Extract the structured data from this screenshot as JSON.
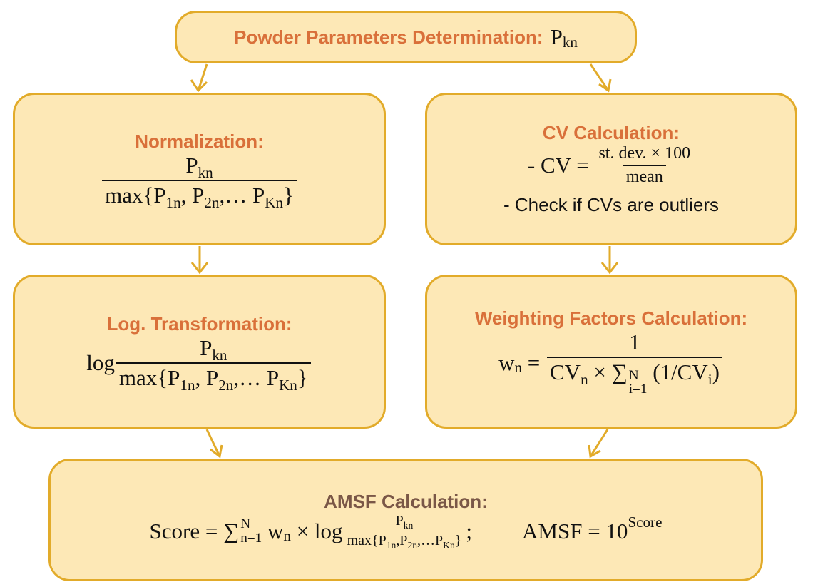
{
  "nodes": [
    {
      "title": "Powder Parameters Determination:",
      "formula": [
        {
          "t": "P"
        },
        {
          "sub": "kn"
        }
      ]
    },
    {
      "title": "Normalization:",
      "formula": [
        {
          "num": [
            {
              "t": "P"
            },
            {
              "sub": "kn"
            }
          ],
          "den": [
            {
              "t": "max{P"
            },
            {
              "sub": "1n"
            },
            {
              "t": ", P"
            },
            {
              "sub": "2n"
            },
            {
              "t": ",… P"
            },
            {
              "sub": "Kn"
            },
            {
              "t": "}"
            }
          ]
        }
      ]
    },
    {
      "title": "CV Calculation:",
      "formula": [
        {
          "t": "- CV = "
        },
        {
          "num": [
            {
              "t": "st. dev. × 100"
            }
          ],
          "den": [
            {
              "t": "mean"
            }
          ]
        }
      ],
      "note": "- Check if CVs are outliers"
    },
    {
      "title": "Log. Transformation:",
      "formula": [
        {
          "t": "log"
        },
        {
          "num": [
            {
              "t": "P"
            },
            {
              "sub": "kn"
            }
          ],
          "den": [
            {
              "t": "max{P"
            },
            {
              "sub": "1n"
            },
            {
              "t": ", P"
            },
            {
              "sub": "2n"
            },
            {
              "t": ",… P"
            },
            {
              "sub": "Kn"
            },
            {
              "t": "}"
            }
          ]
        }
      ]
    },
    {
      "title": "Weighting Factors Calculation:",
      "formula": [
        {
          "t": "w"
        },
        {
          "sub": "n"
        },
        {
          "t": " = "
        },
        {
          "num": [
            {
              "t": "1"
            }
          ],
          "den": [
            {
              "t": "CV"
            },
            {
              "sub": "n"
            },
            {
              "t": " × ∑"
            },
            {
              "sub": "i=1",
              "sup": "N"
            },
            {
              "t": " (1/CV"
            },
            {
              "sub": "i"
            },
            {
              "t": ")"
            }
          ]
        }
      ]
    },
    {
      "title": "AMSF Calculation:",
      "formula": [
        {
          "t": "Score = ∑"
        },
        {
          "sub": "n=1",
          "sup": "N"
        },
        {
          "t": " w"
        },
        {
          "sub": "n"
        },
        {
          "t": " × log"
        },
        {
          "num": [
            {
              "t": "P"
            },
            {
              "sub": "kn"
            }
          ],
          "den": [
            {
              "t": "max{P"
            },
            {
              "sub": "1n"
            },
            {
              "t": ",P"
            },
            {
              "sub": "2n"
            },
            {
              "t": ",…P"
            },
            {
              "sub": "Kn"
            },
            {
              "t": "}"
            }
          ]
        },
        {
          "t": ";"
        }
      ],
      "formula2": [
        {
          "t": "AMSF = 10"
        },
        {
          "sup": "Score"
        }
      ]
    }
  ]
}
